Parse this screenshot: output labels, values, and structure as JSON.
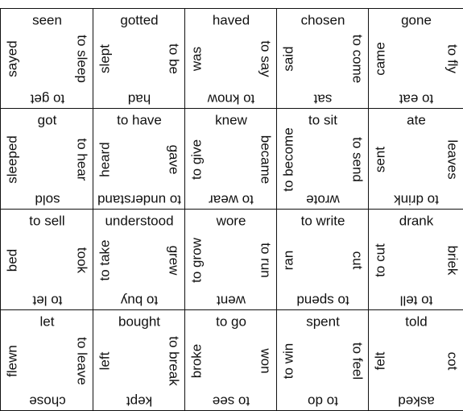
{
  "puzzle": {
    "rows": [
      [
        {
          "top": "seen",
          "left": "sayed",
          "right": "to sleep",
          "bottom": "to get"
        },
        {
          "top": "gotted",
          "left": "slept",
          "right": "to be",
          "bottom": "had"
        },
        {
          "top": "haved",
          "left": "was",
          "right": "to say",
          "bottom": "to know"
        },
        {
          "top": "chosen",
          "left": "said",
          "right": "to come",
          "bottom": "sat"
        },
        {
          "top": "gone",
          "left": "came",
          "right": "to fly",
          "bottom": "to eat"
        }
      ],
      [
        {
          "top": "got",
          "left": "sleeped",
          "right": "to hear",
          "bottom": "sold"
        },
        {
          "top": "to have",
          "left": "heard",
          "right": "gave",
          "bottom": "to understand"
        },
        {
          "top": "knew",
          "left": "to give",
          "right": "became",
          "bottom": "to wear"
        },
        {
          "top": "to sit",
          "left": "to become",
          "right": "to send",
          "bottom": "wrote"
        },
        {
          "top": "ate",
          "left": "sent",
          "right": "leaves",
          "bottom": "to drink"
        }
      ],
      [
        {
          "top": "to sell",
          "left": "bed",
          "right": "took",
          "bottom": "to let"
        },
        {
          "top": "understood",
          "left": "to take",
          "right": "grew",
          "bottom": "to buy"
        },
        {
          "top": "wore",
          "left": "to grow",
          "right": "to run",
          "bottom": "went"
        },
        {
          "top": "to write",
          "left": "ran",
          "right": "cut",
          "bottom": "to spend"
        },
        {
          "top": "drank",
          "left": "to cut",
          "right": "briek",
          "bottom": "to tell"
        }
      ],
      [
        {
          "top": "let",
          "left": "flewn",
          "right": "to leave",
          "bottom": "chose"
        },
        {
          "top": "bought",
          "left": "left",
          "right": "to break",
          "bottom": "kept"
        },
        {
          "top": "to go",
          "left": "broke",
          "right": "won",
          "bottom": "to see"
        },
        {
          "top": "spent",
          "left": "to win",
          "right": "to feel",
          "bottom": "to do"
        },
        {
          "top": "told",
          "left": "felt",
          "right": "cot",
          "bottom": "asked"
        }
      ]
    ]
  }
}
